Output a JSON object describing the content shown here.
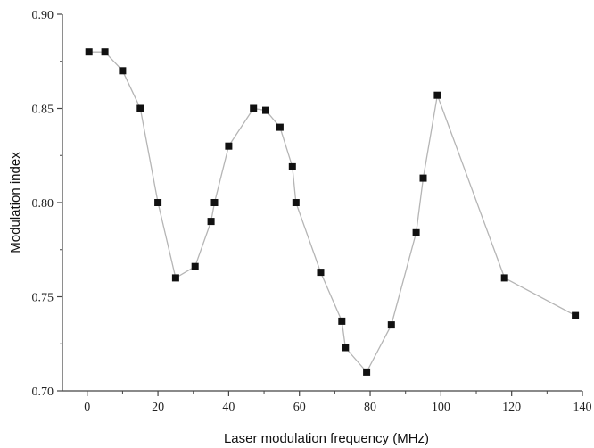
{
  "chart_data": {
    "type": "line",
    "title": "",
    "xlabel": "Laser modulation frequency (MHz)",
    "ylabel": "Modulation index",
    "xlim": [
      -7,
      140
    ],
    "ylim": [
      0.7,
      0.9
    ],
    "xticks": [
      0,
      20,
      40,
      60,
      80,
      100,
      120,
      140
    ],
    "yticks": [
      0.7,
      0.75,
      0.8,
      0.85,
      0.9
    ],
    "xtick_labels": [
      "0",
      "20",
      "40",
      "60",
      "80",
      "100",
      "120",
      "140"
    ],
    "ytick_labels": [
      "0.70",
      "0.75",
      "0.80",
      "0.85",
      "0.90"
    ],
    "grid": false,
    "legend": "none",
    "marker": "square",
    "colors": {
      "line": "#b5b5b5",
      "marker": "#111111",
      "axis": "#444444"
    },
    "series": [
      {
        "x": [
          0.5,
          5,
          10,
          15,
          20,
          25,
          30.5,
          35,
          36,
          40,
          47,
          50.5,
          54.5,
          58,
          59,
          66,
          72,
          73,
          79,
          86,
          93,
          95,
          99,
          118,
          138
        ],
        "y": [
          0.88,
          0.88,
          0.87,
          0.85,
          0.8,
          0.76,
          0.766,
          0.79,
          0.8,
          0.83,
          0.85,
          0.849,
          0.84,
          0.819,
          0.8,
          0.763,
          0.737,
          0.723,
          0.71,
          0.735,
          0.784,
          0.813,
          0.857,
          0.76,
          0.74
        ]
      }
    ]
  }
}
